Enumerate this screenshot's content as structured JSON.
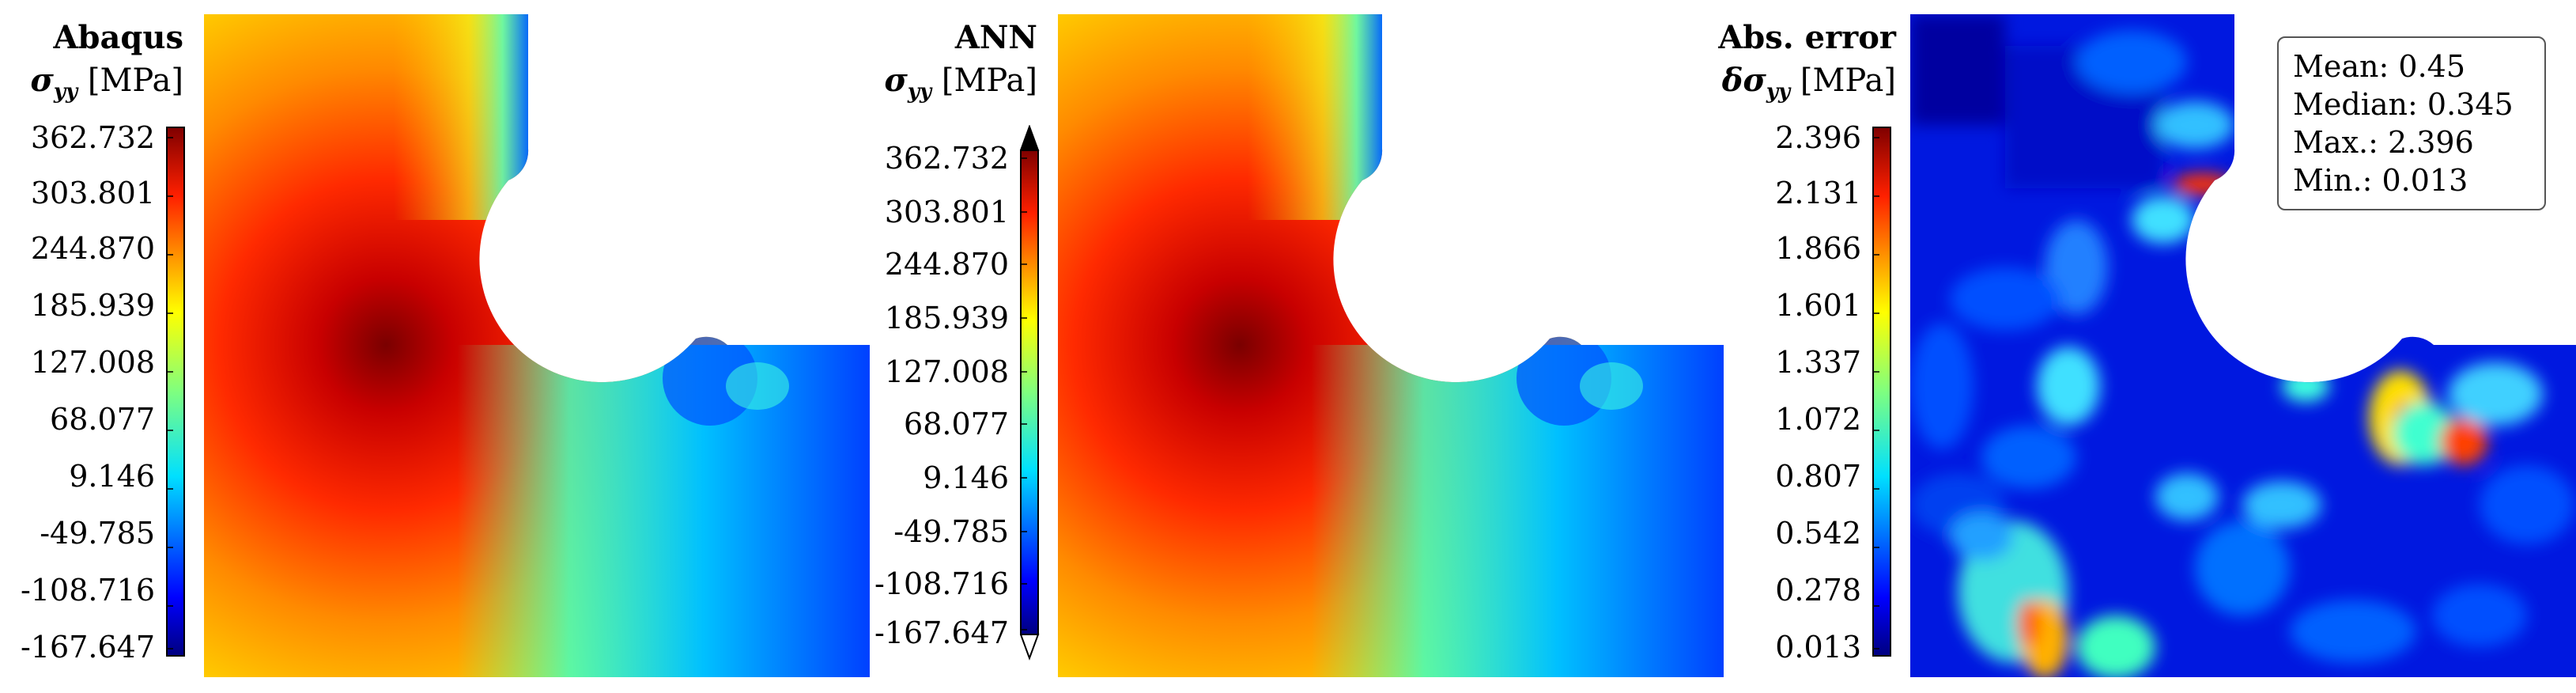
{
  "panels": [
    {
      "title": "Abaqus",
      "quantity_symbol": "σ",
      "quantity_sub": "yy",
      "quantity_unit": "[MPa]",
      "colorbar_ticks": [
        "362.732",
        "303.801",
        "244.870",
        "185.939",
        "127.008",
        "68.077",
        "9.146",
        "-49.785",
        "-108.716",
        "-167.647"
      ]
    },
    {
      "title": "ANN",
      "quantity_symbol": "σ",
      "quantity_sub": "yy",
      "quantity_unit": "[MPa]",
      "colorbar_ticks": [
        "362.732",
        "303.801",
        "244.870",
        "185.939",
        "127.008",
        "68.077",
        "9.146",
        "-49.785",
        "-108.716",
        "-167.647"
      ]
    },
    {
      "title": "Abs. error",
      "quantity_symbol": "δσ",
      "quantity_sub": "yy",
      "quantity_unit": "[MPa]",
      "colorbar_ticks": [
        "2.396",
        "2.131",
        "1.866",
        "1.601",
        "1.337",
        "1.072",
        "0.807",
        "0.542",
        "0.278",
        "0.013"
      ]
    }
  ],
  "stats": {
    "mean": "Mean: 0.45",
    "median": "Median: 0.345",
    "max": "Max.: 2.396",
    "min": "Min.: 0.013"
  },
  "colormap": [
    "#00007f",
    "#0000ff",
    "#007fff",
    "#00ffff",
    "#7fff7f",
    "#ffff00",
    "#ff7f00",
    "#ff0000",
    "#7f0000"
  ]
}
